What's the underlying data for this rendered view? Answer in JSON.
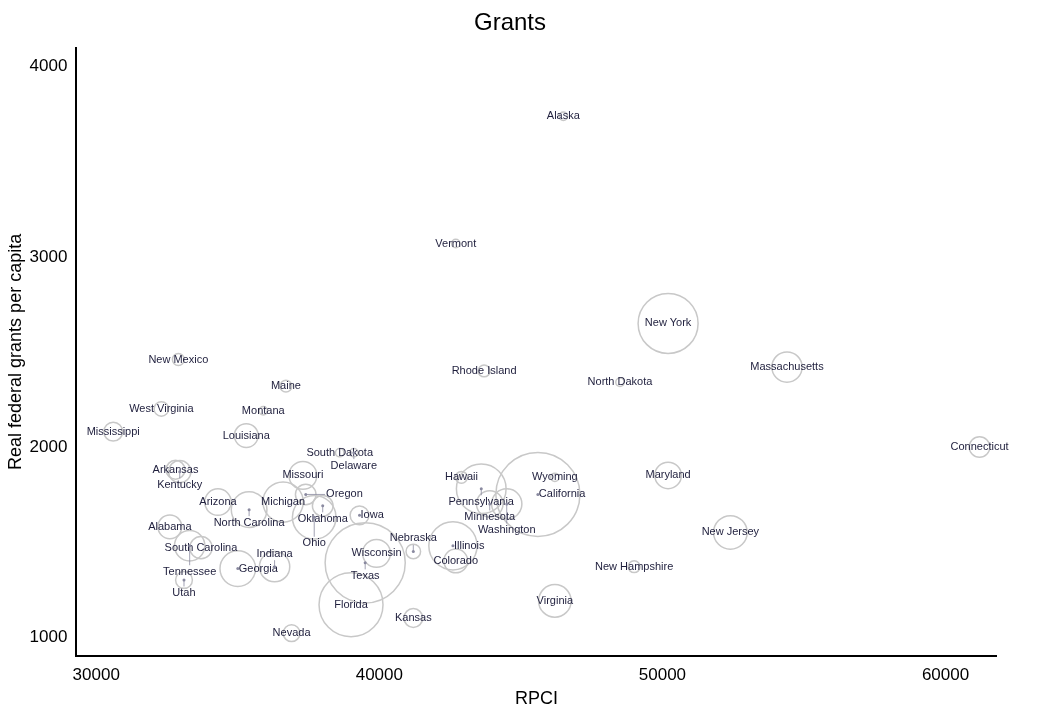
{
  "chart_data": {
    "type": "bubble",
    "title": "Grants",
    "xlabel": "RPCI",
    "ylabel": "Real federal grants per capita",
    "color": "#c8c8c8",
    "legend": false,
    "grid": false,
    "xlim": [
      29300,
      61800
    ],
    "xticks": [
      30000,
      40000,
      50000,
      60000
    ],
    "ylim": [
      900,
      4100
    ],
    "yticks": [
      1000,
      2000,
      3000,
      4000
    ],
    "x": [
      46500,
      42700,
      50200,
      43700,
      48500,
      54400,
      32900,
      36700,
      32300,
      35900,
      30600,
      35300,
      38600,
      39100,
      61200,
      32800,
      32950,
      37300,
      42900,
      50200,
      46200,
      43600,
      45600,
      43900,
      44500,
      34300,
      35400,
      36600,
      37400,
      38000,
      37700,
      39300,
      32600,
      33700,
      33300,
      33100,
      35000,
      36300,
      39900,
      39500,
      41200,
      42600,
      42700,
      52400,
      49000,
      46200,
      39000,
      41200,
      36900
    ],
    "values": [
      3740,
      3070,
      2650,
      2400,
      2340,
      2420,
      2460,
      2320,
      2200,
      2190,
      2080,
      2060,
      1970,
      1970,
      2000,
      1880,
      1870,
      1850,
      1840,
      1850,
      1840,
      1780,
      1750,
      1700,
      1700,
      1710,
      1670,
      1710,
      1750,
      1690,
      1630,
      1640,
      1580,
      1470,
      1480,
      1300,
      1360,
      1370,
      1440,
      1390,
      1450,
      1480,
      1400,
      1550,
      1370,
      1190,
      1170,
      1100,
      1020
    ],
    "sizes": [
      0.01,
      0.01,
      0.51,
      0.02,
      0.01,
      0.13,
      0.02,
      0.02,
      0.03,
      0.01,
      0.05,
      0.08,
      0.01,
      0.01,
      0.06,
      0.05,
      0.07,
      0.11,
      0.02,
      0.1,
      0.01,
      0.35,
      1,
      0.1,
      0.13,
      0.1,
      0.18,
      0.23,
      0.06,
      0.06,
      0.27,
      0.05,
      0.08,
      0.07,
      0.13,
      0.04,
      0.18,
      0.13,
      0.11,
      0.91,
      0.03,
      0.33,
      0.08,
      0.16,
      0.02,
      0.15,
      0.58,
      0.05,
      0.04
    ],
    "annotations": [
      {
        "text": "Alaska",
        "x": 46500,
        "y": 3740
      },
      {
        "text": "Vermont",
        "x": 42700,
        "y": 3070
      },
      {
        "text": "New York",
        "x": 50200,
        "y": 2650
      },
      {
        "text": "Rhode Island",
        "x": 43700,
        "y": 2400
      },
      {
        "text": "North Dakota",
        "x": 48500,
        "y": 2340
      },
      {
        "text": "Massachusetts",
        "x": 54400,
        "y": 2420
      },
      {
        "text": "New Mexico",
        "x": 32900,
        "y": 2460
      },
      {
        "text": "Maine",
        "x": 36700,
        "y": 2320
      },
      {
        "text": "West Virginia",
        "x": 32300,
        "y": 2200
      },
      {
        "text": "Montana",
        "x": 35900,
        "y": 2190
      },
      {
        "text": "Mississippi",
        "x": 30600,
        "y": 2080
      },
      {
        "text": "Louisiana",
        "x": 35300,
        "y": 2060
      },
      {
        "text": "South Dakota",
        "x": 38600,
        "y": 1970
      },
      {
        "text": "Delaware",
        "x": 39100,
        "y": 1970
      },
      {
        "text": "Connecticut",
        "x": 61200,
        "y": 2000
      },
      {
        "text": "Arkansas",
        "x": 32800,
        "y": 1880
      },
      {
        "text": "Kentucky",
        "x": 32950,
        "y": 1870
      },
      {
        "text": "Missouri",
        "x": 37300,
        "y": 1850
      },
      {
        "text": "Hawaii",
        "x": 42900,
        "y": 1840
      },
      {
        "text": "Maryland",
        "x": 50200,
        "y": 1850
      },
      {
        "text": "Wyoming",
        "x": 46200,
        "y": 1840
      },
      {
        "text": "Pennsylvania",
        "x": 43600,
        "y": 1780
      },
      {
        "text": "California",
        "x": 45600,
        "y": 1750
      },
      {
        "text": "Minnesota",
        "x": 43900,
        "y": 1700
      },
      {
        "text": "Washington",
        "x": 44500,
        "y": 1700
      },
      {
        "text": "Arizona",
        "x": 34300,
        "y": 1710
      },
      {
        "text": "North Carolina",
        "x": 35400,
        "y": 1670
      },
      {
        "text": "Michigan",
        "x": 36600,
        "y": 1710
      },
      {
        "text": "Oregon",
        "x": 37400,
        "y": 1750
      },
      {
        "text": "Oklahoma",
        "x": 38000,
        "y": 1690
      },
      {
        "text": "Ohio",
        "x": 37700,
        "y": 1630
      },
      {
        "text": "Iowa",
        "x": 39300,
        "y": 1640
      },
      {
        "text": "Alabama",
        "x": 32600,
        "y": 1580
      },
      {
        "text": "South Carolina",
        "x": 33700,
        "y": 1470
      },
      {
        "text": "Tennessee",
        "x": 33300,
        "y": 1480
      },
      {
        "text": "Utah",
        "x": 33100,
        "y": 1300
      },
      {
        "text": "Georgia",
        "x": 35000,
        "y": 1360
      },
      {
        "text": "Indiana",
        "x": 36300,
        "y": 1370
      },
      {
        "text": "Wisconsin",
        "x": 39900,
        "y": 1440
      },
      {
        "text": "Texas",
        "x": 39500,
        "y": 1390
      },
      {
        "text": "Nebraska",
        "x": 41200,
        "y": 1450
      },
      {
        "text": "Illinois",
        "x": 42600,
        "y": 1480
      },
      {
        "text": "Colorado",
        "x": 42700,
        "y": 1400
      },
      {
        "text": "New Jersey",
        "x": 52400,
        "y": 1550
      },
      {
        "text": "New Hampshire",
        "x": 49000,
        "y": 1370
      },
      {
        "text": "Virginia",
        "x": 46200,
        "y": 1190
      },
      {
        "text": "Florida",
        "x": 39000,
        "y": 1170
      },
      {
        "text": "Kansas",
        "x": 41200,
        "y": 1100
      },
      {
        "text": "Nevada",
        "x": 36900,
        "y": 1020
      }
    ]
  }
}
